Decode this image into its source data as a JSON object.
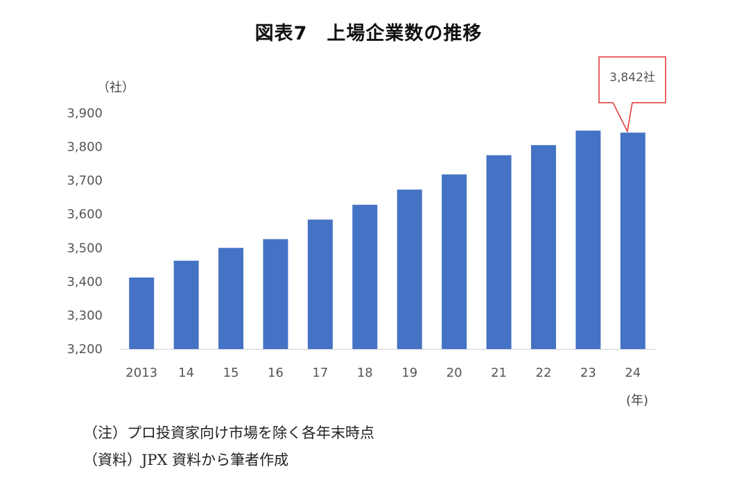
{
  "chart_data": {
    "type": "bar",
    "title": "図表7　上場企業数の推移",
    "ylabel": "（社）",
    "xlabel": "(年)",
    "categories": [
      "2013",
      "14",
      "15",
      "16",
      "17",
      "18",
      "19",
      "20",
      "21",
      "22",
      "23",
      "24"
    ],
    "values": [
      3412,
      3462,
      3500,
      3526,
      3584,
      3628,
      3673,
      3718,
      3775,
      3805,
      3848,
      3842
    ],
    "ylim": [
      3200,
      3900
    ],
    "yticks": [
      3200,
      3300,
      3400,
      3500,
      3600,
      3700,
      3800,
      3900
    ],
    "ytick_labels": [
      "3,200",
      "3,300",
      "3,400",
      "3,500",
      "3,600",
      "3,700",
      "3,800",
      "3,900"
    ],
    "grid": false,
    "bar_color": "#4472C4",
    "annotation": {
      "text": "3,842社",
      "category": "24",
      "border_color": "#E03030"
    }
  },
  "notes": {
    "note1": "（注）プロ投資家向け市場を除く各年末時点",
    "note2": "（資料）JPX 資料から筆者作成"
  }
}
